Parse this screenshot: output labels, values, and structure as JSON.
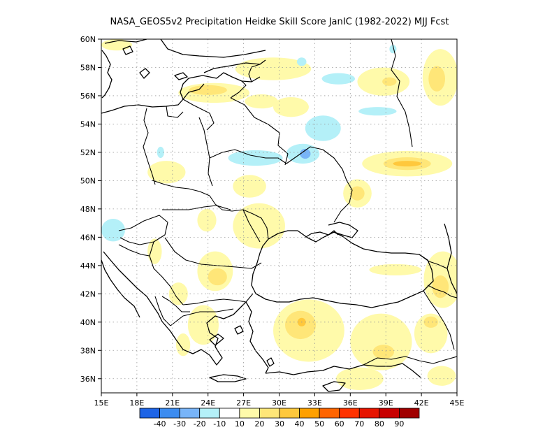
{
  "title": "NASA_GEOS5v2  Precipitation Heidke Skill Score JanIC (1982-2022) MJJ Fcst",
  "map": {
    "lon_range": [
      15,
      45
    ],
    "lat_range": [
      35,
      60
    ],
    "lat_ticks": [
      {
        "value": 60,
        "label": "60N"
      },
      {
        "value": 58,
        "label": "58N"
      },
      {
        "value": 56,
        "label": "56N"
      },
      {
        "value": 54,
        "label": "54N"
      },
      {
        "value": 52,
        "label": "52N"
      },
      {
        "value": 50,
        "label": "50N"
      },
      {
        "value": 48,
        "label": "48N"
      },
      {
        "value": 46,
        "label": "46N"
      },
      {
        "value": 44,
        "label": "44N"
      },
      {
        "value": 42,
        "label": "42N"
      },
      {
        "value": 40,
        "label": "40N"
      },
      {
        "value": 38,
        "label": "38N"
      },
      {
        "value": 36,
        "label": "36N"
      }
    ],
    "lon_ticks": [
      {
        "value": 15,
        "label": "15E"
      },
      {
        "value": 18,
        "label": "18E"
      },
      {
        "value": 21,
        "label": "21E"
      },
      {
        "value": 24,
        "label": "24E"
      },
      {
        "value": 27,
        "label": "27E"
      },
      {
        "value": 30,
        "label": "30E"
      },
      {
        "value": 33,
        "label": "33E"
      },
      {
        "value": 36,
        "label": "36E"
      },
      {
        "value": 39,
        "label": "39E"
      },
      {
        "value": 42,
        "label": "42E"
      },
      {
        "value": 45,
        "label": "45E"
      }
    ],
    "gridlines": "dotted"
  },
  "colorbar": {
    "colors": [
      "#1e64e6",
      "#3c8cf0",
      "#78b4f8",
      "#b4f0f8",
      "#ffffff",
      "#fffaaa",
      "#ffe678",
      "#ffc83c",
      "#ffa000",
      "#ff6400",
      "#ff3200",
      "#e61400",
      "#c80000",
      "#a00000"
    ],
    "labels": [
      "-40",
      "-30",
      "-20",
      "-10",
      "10",
      "20",
      "30",
      "40",
      "50",
      "60",
      "70",
      "80",
      "90"
    ]
  },
  "skill_regions": [
    {
      "level": "10-20",
      "color": "#fffaaa",
      "lon": 16.3,
      "lat": 59.6,
      "rx": 1.3,
      "ry": 0.4
    },
    {
      "level": "10-20",
      "color": "#fffaaa",
      "lon": 29.5,
      "lat": 57.9,
      "rx": 3.2,
      "ry": 0.8
    },
    {
      "level": "10-20",
      "color": "#fffaaa",
      "lon": 24.5,
      "lat": 56.2,
      "rx": 3.0,
      "ry": 0.7
    },
    {
      "level": "20-30",
      "color": "#ffe678",
      "lon": 24.0,
      "lat": 56.4,
      "rx": 1.6,
      "ry": 0.35
    },
    {
      "level": "10-20",
      "color": "#fffaaa",
      "lon": 38.8,
      "lat": 57.0,
      "rx": 2.2,
      "ry": 1.0
    },
    {
      "level": "20-30",
      "color": "#ffe678",
      "lon": 39.3,
      "lat": 57.0,
      "rx": 0.6,
      "ry": 0.3
    },
    {
      "level": "10-20",
      "color": "#fffaaa",
      "lon": 43.6,
      "lat": 57.3,
      "rx": 1.5,
      "ry": 2.0
    },
    {
      "level": "20-30",
      "color": "#ffe678",
      "lon": 43.3,
      "lat": 57.2,
      "rx": 0.7,
      "ry": 0.9
    },
    {
      "level": "10-20",
      "color": "#fffaaa",
      "lon": 28.5,
      "lat": 55.6,
      "rx": 1.4,
      "ry": 0.5
    },
    {
      "level": "10-20",
      "color": "#fffaaa",
      "lon": 31.0,
      "lat": 55.2,
      "rx": 1.5,
      "ry": 0.7
    },
    {
      "level": "10-20",
      "color": "#fffaaa",
      "lon": 40.8,
      "lat": 51.2,
      "rx": 3.8,
      "ry": 0.9
    },
    {
      "level": "20-30",
      "color": "#ffe678",
      "lon": 40.8,
      "lat": 51.2,
      "rx": 2.0,
      "ry": 0.45
    },
    {
      "level": "30-40",
      "color": "#ffc83c",
      "lon": 40.8,
      "lat": 51.2,
      "rx": 1.2,
      "ry": 0.2
    },
    {
      "level": "10-20",
      "color": "#fffaaa",
      "lon": 36.6,
      "lat": 49.1,
      "rx": 1.2,
      "ry": 1.0
    },
    {
      "level": "20-30",
      "color": "#ffe678",
      "lon": 36.6,
      "lat": 49.1,
      "rx": 0.6,
      "ry": 0.5
    },
    {
      "level": "10-20",
      "color": "#fffaaa",
      "lon": 20.5,
      "lat": 50.6,
      "rx": 1.6,
      "ry": 0.8
    },
    {
      "level": "10-20",
      "color": "#fffaaa",
      "lon": 27.5,
      "lat": 49.6,
      "rx": 1.4,
      "ry": 0.8
    },
    {
      "level": "10-20",
      "color": "#fffaaa",
      "lon": 28.3,
      "lat": 46.8,
      "rx": 2.2,
      "ry": 1.6
    },
    {
      "level": "10-20",
      "color": "#fffaaa",
      "lon": 23.9,
      "lat": 47.2,
      "rx": 0.8,
      "ry": 0.8
    },
    {
      "level": "10-20",
      "color": "#fffaaa",
      "lon": 19.5,
      "lat": 45.0,
      "rx": 0.6,
      "ry": 0.9
    },
    {
      "level": "10-20",
      "color": "#fffaaa",
      "lon": 24.6,
      "lat": 43.6,
      "rx": 1.5,
      "ry": 1.4
    },
    {
      "level": "20-30",
      "color": "#ffe678",
      "lon": 24.8,
      "lat": 43.2,
      "rx": 0.8,
      "ry": 0.6
    },
    {
      "level": "10-20",
      "color": "#fffaaa",
      "lon": 21.5,
      "lat": 42.0,
      "rx": 0.8,
      "ry": 0.8
    },
    {
      "level": "10-20",
      "color": "#fffaaa",
      "lon": 43.8,
      "lat": 43.0,
      "rx": 1.6,
      "ry": 2.0
    },
    {
      "level": "20-30",
      "color": "#ffe678",
      "lon": 43.6,
      "lat": 42.5,
      "rx": 0.7,
      "ry": 0.8
    },
    {
      "level": "10-20",
      "color": "#fffaaa",
      "lon": 39.8,
      "lat": 43.7,
      "rx": 2.2,
      "ry": 0.4
    },
    {
      "level": "10-20",
      "color": "#fffaaa",
      "lon": 32.5,
      "lat": 39.4,
      "rx": 3.0,
      "ry": 2.2
    },
    {
      "level": "20-30",
      "color": "#ffe678",
      "lon": 31.8,
      "lat": 39.8,
      "rx": 1.3,
      "ry": 1.0
    },
    {
      "level": "30-40",
      "color": "#ffc83c",
      "lon": 31.9,
      "lat": 40.0,
      "rx": 0.35,
      "ry": 0.3
    },
    {
      "level": "10-20",
      "color": "#fffaaa",
      "lon": 38.6,
      "lat": 38.6,
      "rx": 2.6,
      "ry": 2.0
    },
    {
      "level": "20-30",
      "color": "#ffe678",
      "lon": 38.8,
      "lat": 37.9,
      "rx": 0.9,
      "ry": 0.5
    },
    {
      "level": "10-20",
      "color": "#fffaaa",
      "lon": 42.8,
      "lat": 39.2,
      "rx": 1.4,
      "ry": 1.4
    },
    {
      "level": "20-30",
      "color": "#ffe678",
      "lon": 42.8,
      "lat": 40.0,
      "rx": 0.6,
      "ry": 0.4
    },
    {
      "level": "10-20",
      "color": "#fffaaa",
      "lon": 36.8,
      "lat": 36.0,
      "rx": 2.0,
      "ry": 0.8
    },
    {
      "level": "10-20",
      "color": "#fffaaa",
      "lon": 43.7,
      "lat": 36.2,
      "rx": 1.2,
      "ry": 0.7
    },
    {
      "level": "10-20",
      "color": "#fffaaa",
      "lon": 23.6,
      "lat": 39.8,
      "rx": 1.3,
      "ry": 1.4
    },
    {
      "level": "10-20",
      "color": "#fffaaa",
      "lon": 21.9,
      "lat": 38.4,
      "rx": 0.6,
      "ry": 0.8
    },
    {
      "level": "-10--20",
      "color": "#b4f0f8",
      "lon": 28.0,
      "lat": 51.6,
      "rx": 2.3,
      "ry": 0.55
    },
    {
      "level": "-10--20",
      "color": "#b4f0f8",
      "lon": 32.0,
      "lat": 51.9,
      "rx": 1.4,
      "ry": 0.7
    },
    {
      "level": "-20--30",
      "color": "#78b4f8",
      "lon": 32.2,
      "lat": 51.9,
      "rx": 0.45,
      "ry": 0.35
    },
    {
      "level": "-10--20",
      "color": "#b4f0f8",
      "lon": 33.7,
      "lat": 53.7,
      "rx": 1.5,
      "ry": 0.9
    },
    {
      "level": "-10--20",
      "color": "#b4f0f8",
      "lon": 35.0,
      "lat": 57.2,
      "rx": 1.4,
      "ry": 0.4
    },
    {
      "level": "-10--20",
      "color": "#b4f0f8",
      "lon": 38.3,
      "lat": 54.9,
      "rx": 1.6,
      "ry": 0.3
    },
    {
      "level": "-10--20",
      "color": "#b4f0f8",
      "lon": 16.0,
      "lat": 46.5,
      "rx": 1.0,
      "ry": 0.8
    },
    {
      "level": "-10--20",
      "color": "#b4f0f8",
      "lon": 20.0,
      "lat": 52.0,
      "rx": 0.3,
      "ry": 0.4
    },
    {
      "level": "-10--20",
      "color": "#b4f0f8",
      "lon": 31.9,
      "lat": 58.4,
      "rx": 0.4,
      "ry": 0.3
    },
    {
      "level": "-10--20",
      "color": "#b4f0f8",
      "lon": 39.6,
      "lat": 59.3,
      "rx": 0.3,
      "ry": 0.3
    }
  ]
}
